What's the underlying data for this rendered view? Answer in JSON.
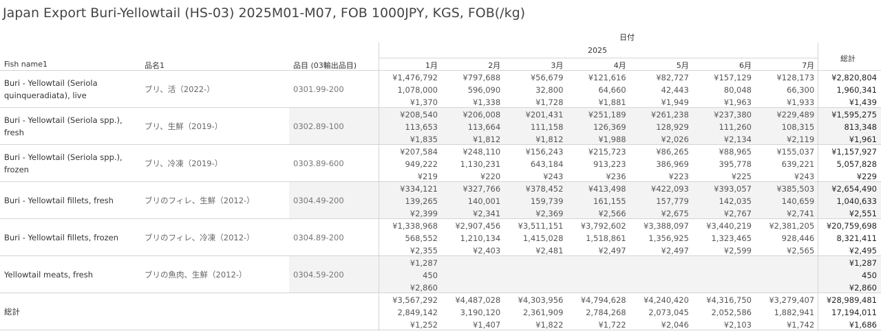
{
  "title": "Japan Export Buri-Yellowtail (HS-03) 2025M01-M07, FOB 1000JPY, KGS, FOB(/kg)",
  "header": {
    "date_label": "日付",
    "year": "2025",
    "columns": [
      "Fish name1",
      "品名1",
      "品目 (03輸出品目)"
    ],
    "months": [
      "1月",
      "2月",
      "3月",
      "4月",
      "5月",
      "6月",
      "7月"
    ],
    "total_label": "総計"
  },
  "rows": [
    {
      "fish": "Buri - Yellowtail (Seriola quinqueradiata), live",
      "jp": "ブリ、活（2022-）",
      "code": "0301.99-200",
      "months": [
        [
          "¥1,476,792",
          "1,078,000",
          "¥1,370"
        ],
        [
          "¥797,688",
          "596,090",
          "¥1,338"
        ],
        [
          "¥56,679",
          "32,800",
          "¥1,728"
        ],
        [
          "¥121,616",
          "64,660",
          "¥1,881"
        ],
        [
          "¥82,727",
          "42,443",
          "¥1,949"
        ],
        [
          "¥157,129",
          "80,048",
          "¥1,963"
        ],
        [
          "¥128,173",
          "66,300",
          "¥1,933"
        ]
      ],
      "total": [
        "¥2,820,804",
        "1,960,341",
        "¥1,439"
      ]
    },
    {
      "fish": "Buri - Yellowtail (Seriola spp.), fresh",
      "jp": "ブリ、生鮮（2019-）",
      "code": "0302.89-100",
      "months": [
        [
          "¥208,540",
          "113,653",
          "¥1,835"
        ],
        [
          "¥206,008",
          "113,664",
          "¥1,812"
        ],
        [
          "¥201,431",
          "111,158",
          "¥1,812"
        ],
        [
          "¥251,189",
          "126,369",
          "¥1,988"
        ],
        [
          "¥261,238",
          "128,929",
          "¥2,026"
        ],
        [
          "¥237,380",
          "111,260",
          "¥2,134"
        ],
        [
          "¥229,489",
          "108,315",
          "¥2,119"
        ]
      ],
      "total": [
        "¥1,595,275",
        "813,348",
        "¥1,961"
      ]
    },
    {
      "fish": "Buri - Yellowtail (Seriola spp.), frozen",
      "jp": "ブリ、冷凍（2019-）",
      "code": "0303.89-600",
      "months": [
        [
          "¥207,584",
          "949,222",
          "¥219"
        ],
        [
          "¥248,110",
          "1,130,231",
          "¥220"
        ],
        [
          "¥156,243",
          "643,184",
          "¥243"
        ],
        [
          "¥215,723",
          "913,223",
          "¥236"
        ],
        [
          "¥86,265",
          "386,969",
          "¥223"
        ],
        [
          "¥88,965",
          "395,778",
          "¥225"
        ],
        [
          "¥155,037",
          "639,221",
          "¥243"
        ]
      ],
      "total": [
        "¥1,157,927",
        "5,057,828",
        "¥229"
      ]
    },
    {
      "fish": "Buri - Yellowtail fillets, fresh",
      "jp": "ブリのフィレ、生鮮（2012-）",
      "code": "0304.49-200",
      "months": [
        [
          "¥334,121",
          "139,265",
          "¥2,399"
        ],
        [
          "¥327,766",
          "140,001",
          "¥2,341"
        ],
        [
          "¥378,452",
          "159,739",
          "¥2,369"
        ],
        [
          "¥413,498",
          "161,155",
          "¥2,566"
        ],
        [
          "¥422,093",
          "157,779",
          "¥2,675"
        ],
        [
          "¥393,057",
          "142,035",
          "¥2,767"
        ],
        [
          "¥385,503",
          "140,659",
          "¥2,741"
        ]
      ],
      "total": [
        "¥2,654,490",
        "1,040,633",
        "¥2,551"
      ]
    },
    {
      "fish": "Buri - Yellowtail fillets, frozen",
      "jp": "ブリのフィレ、冷凍（2012-）",
      "code": "0304.89-200",
      "months": [
        [
          "¥1,338,968",
          "568,552",
          "¥2,355"
        ],
        [
          "¥2,907,456",
          "1,210,134",
          "¥2,403"
        ],
        [
          "¥3,511,151",
          "1,415,028",
          "¥2,481"
        ],
        [
          "¥3,792,602",
          "1,518,861",
          "¥2,497"
        ],
        [
          "¥3,388,097",
          "1,356,925",
          "¥2,497"
        ],
        [
          "¥3,440,219",
          "1,323,465",
          "¥2,599"
        ],
        [
          "¥2,381,205",
          "928,446",
          "¥2,565"
        ]
      ],
      "total": [
        "¥20,759,698",
        "8,321,411",
        "¥2,495"
      ]
    },
    {
      "fish": "Yellowtail meats, fresh",
      "jp": "ブリの魚肉、生鮮（2012-）",
      "code": "0304.59-200",
      "months": [
        [
          "¥1,287",
          "450",
          "¥2,860"
        ],
        [
          "",
          "",
          ""
        ],
        [
          "",
          "",
          ""
        ],
        [
          "",
          "",
          ""
        ],
        [
          "",
          "",
          ""
        ],
        [
          "",
          "",
          ""
        ],
        [
          "",
          "",
          ""
        ]
      ],
      "total": [
        "¥1,287",
        "450",
        "¥2,860"
      ]
    },
    {
      "fish": "総計",
      "jp": "",
      "code": "",
      "months": [
        [
          "¥3,567,292",
          "2,849,142",
          "¥1,252"
        ],
        [
          "¥4,487,028",
          "3,190,120",
          "¥1,407"
        ],
        [
          "¥4,303,956",
          "2,361,909",
          "¥1,822"
        ],
        [
          "¥4,794,628",
          "2,784,268",
          "¥1,722"
        ],
        [
          "¥4,240,420",
          "2,073,045",
          "¥2,046"
        ],
        [
          "¥4,316,750",
          "2,052,586",
          "¥2,103"
        ],
        [
          "¥3,279,407",
          "1,882,941",
          "¥1,742"
        ]
      ],
      "total": [
        "¥28,989,481",
        "17,194,011",
        "¥1,686"
      ]
    }
  ]
}
